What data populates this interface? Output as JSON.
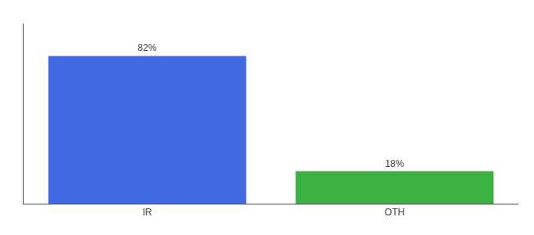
{
  "chart_data": {
    "type": "bar",
    "categories": [
      "IR",
      "OTH"
    ],
    "values": [
      82,
      18
    ],
    "value_labels": [
      "82%",
      "18%"
    ],
    "colors": [
      "#4169e1",
      "#3cb043"
    ],
    "ylim": [
      0,
      100
    ],
    "data_labels": true,
    "tick_labels": "x",
    "grid": false
  }
}
